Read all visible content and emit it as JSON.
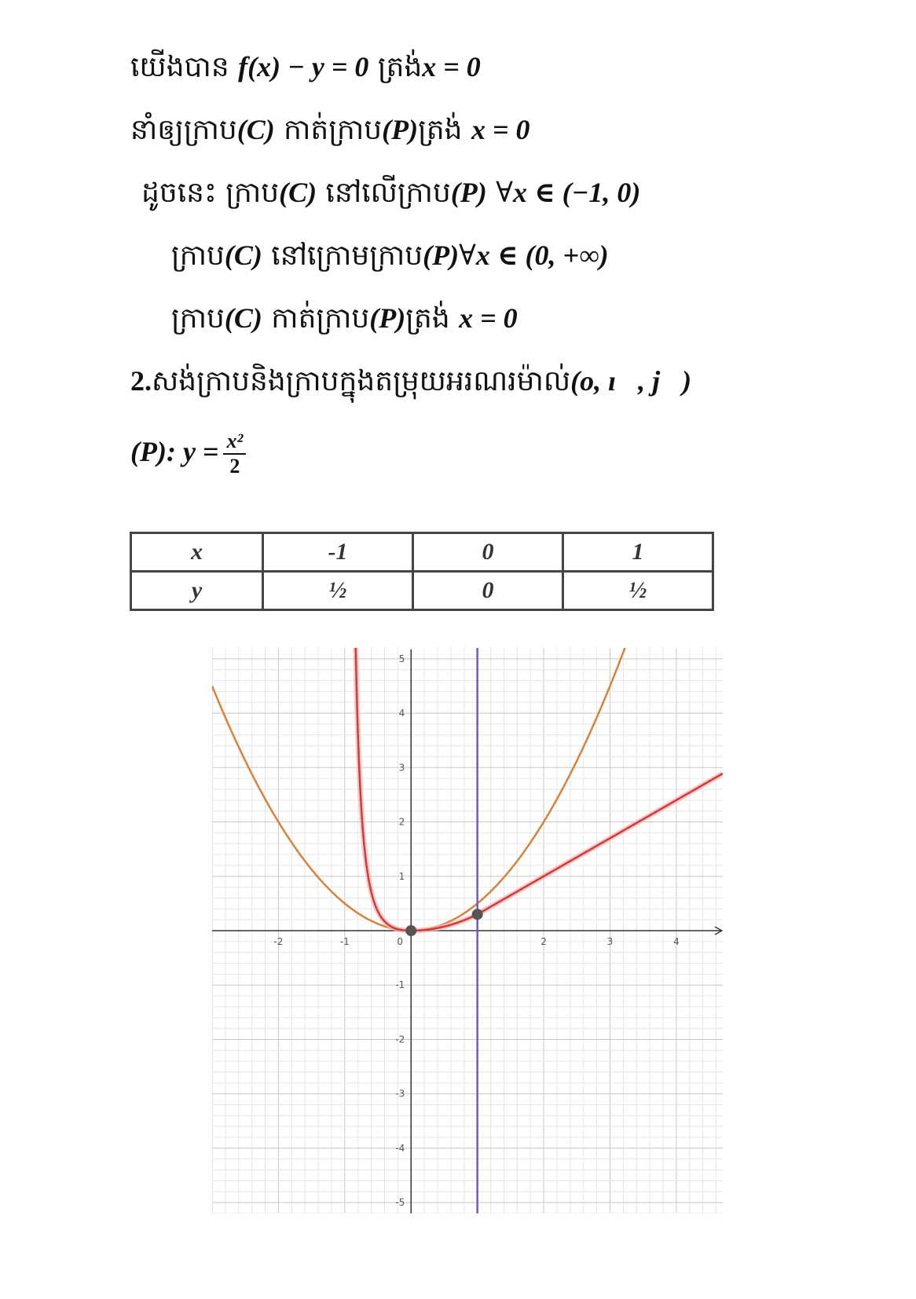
{
  "lines": [
    {
      "pre": "យើងបាន ",
      "math": "f(x) − y = 0",
      "mid": " ត្រង់",
      "math2": "x = 0",
      "post": ""
    },
    {
      "pre": "នាំឲ្យក្រាប",
      "math": "(C)",
      "mid": " កាត់ក្រាប",
      "math2": "(P)",
      "post": "ត្រង់ ",
      "math3": "x = 0"
    },
    {
      "pre": "ដូចនេះ  ក្រាប",
      "math": "(C)",
      "mid": " នៅលើក្រាប",
      "math2": "(P)",
      "post": " ∀",
      "math3": "x ∈ (−1, 0)"
    },
    {
      "pre": "ក្រាប",
      "math": "(C)",
      "mid": " នៅក្រោមក្រាប",
      "math2": "(P)",
      "post": "∀",
      "math3": "x ∈ (0, +∞)"
    },
    {
      "pre": "ក្រាប",
      "math": "(C)",
      "mid": " កាត់ក្រាប",
      "math2": "(P)",
      "post": "ត្រង់ ",
      "math3": "x = 0"
    }
  ],
  "section": {
    "number": "2.",
    "text": "សង់ក្រាបនិងក្រាបក្នុងតម្រុយអរណរម៉ាល់",
    "frame": "(o, ı⃗, j⃗)"
  },
  "parabola": {
    "label": "(P): y =",
    "numerator": "x²",
    "denominator": "2"
  },
  "table": {
    "rows": [
      [
        "x",
        "-1",
        "0",
        "1"
      ],
      [
        "y",
        "½",
        "0",
        "½"
      ]
    ]
  },
  "chart_data": {
    "type": "line",
    "xlim": [
      -3,
      4.7
    ],
    "ylim": [
      -5.2,
      5.2
    ],
    "x_ticks": [
      "-2",
      "-1",
      "0",
      "2",
      "3",
      "4"
    ],
    "y_ticks": [
      "5",
      "4",
      "3",
      "2",
      "1",
      "-1",
      "-2",
      "-3",
      "-4",
      "-5"
    ],
    "grid": true,
    "series": [
      {
        "color": "#d9823b",
        "function": "x^2/2"
      },
      {
        "color": "#d33a3a",
        "function": "curve C"
      },
      {
        "color": "#6a5acd",
        "function": "x = 1"
      }
    ],
    "points": [
      [
        0,
        0
      ],
      [
        1,
        0.3
      ]
    ]
  }
}
